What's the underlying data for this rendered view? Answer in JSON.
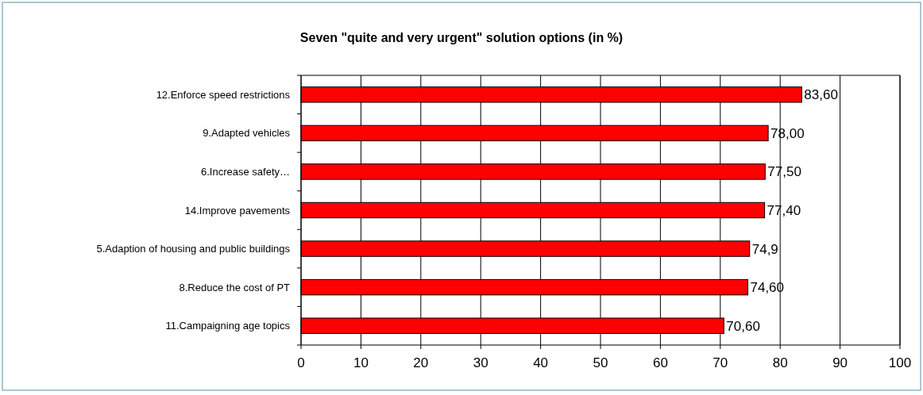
{
  "chart_data": {
    "type": "bar",
    "orientation": "horizontal",
    "title": "Seven  \"quite and very urgent\" solution options (in %)",
    "categories": [
      "12.Enforce speed  restrictions",
      "9.Adapted vehicles",
      "6.Increase safety…",
      "14.Improve pavements",
      "5.Adaption of housing and public buildings",
      "8.Reduce the cost of PT",
      "11.Campaigning age topics"
    ],
    "values": [
      83.6,
      78.0,
      77.5,
      77.4,
      74.9,
      74.6,
      70.6
    ],
    "value_labels": [
      "83,60",
      "78,00",
      "77,50",
      "77,40",
      "74,9",
      "74,60",
      "70,60"
    ],
    "color": "#ff0000",
    "xlim": [
      0,
      100
    ],
    "xticks": [
      0,
      10,
      20,
      30,
      40,
      50,
      60,
      70,
      80,
      90,
      100
    ],
    "grid": "x"
  }
}
